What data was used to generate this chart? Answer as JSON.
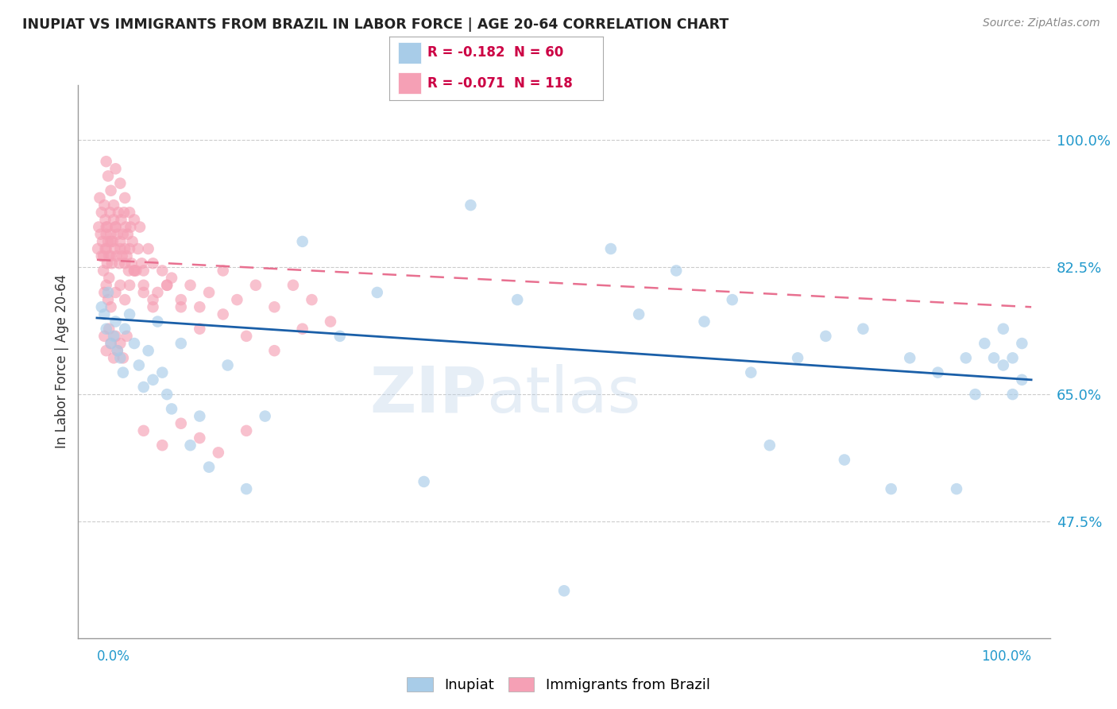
{
  "title": "INUPIAT VS IMMIGRANTS FROM BRAZIL IN LABOR FORCE | AGE 20-64 CORRELATION CHART",
  "source": "Source: ZipAtlas.com",
  "ylabel": "In Labor Force | Age 20-64",
  "yticks": [
    0.475,
    0.65,
    0.825,
    1.0
  ],
  "ytick_labels": [
    "47.5%",
    "65.0%",
    "82.5%",
    "100.0%"
  ],
  "xlim": [
    -0.02,
    1.02
  ],
  "ylim": [
    0.315,
    1.075
  ],
  "legend_r1": "R = -0.182  N = 60",
  "legend_r2": "R = -0.071  N = 118",
  "watermark_zip": "ZIP",
  "watermark_atlas": "atlas",
  "inupiat_color": "#a8cce8",
  "brazil_color": "#f5a0b5",
  "inupiat_line_color": "#1a5fa8",
  "brazil_line_color": "#e87090",
  "inupiat_legend_color": "#a8cce8",
  "brazil_legend_color": "#f5a0b5",
  "inupiat_x": [
    0.005,
    0.008,
    0.01,
    0.012,
    0.015,
    0.018,
    0.02,
    0.022,
    0.025,
    0.028,
    0.03,
    0.035,
    0.04,
    0.045,
    0.05,
    0.055,
    0.06,
    0.065,
    0.07,
    0.075,
    0.08,
    0.09,
    0.1,
    0.11,
    0.12,
    0.14,
    0.16,
    0.18,
    0.22,
    0.26,
    0.3,
    0.35,
    0.4,
    0.45,
    0.5,
    0.55,
    0.58,
    0.62,
    0.65,
    0.68,
    0.7,
    0.72,
    0.75,
    0.78,
    0.8,
    0.82,
    0.85,
    0.87,
    0.9,
    0.92,
    0.93,
    0.94,
    0.95,
    0.96,
    0.97,
    0.97,
    0.98,
    0.98,
    0.99,
    0.99
  ],
  "inupiat_y": [
    0.77,
    0.76,
    0.74,
    0.79,
    0.72,
    0.73,
    0.75,
    0.71,
    0.7,
    0.68,
    0.74,
    0.76,
    0.72,
    0.69,
    0.66,
    0.71,
    0.67,
    0.75,
    0.68,
    0.65,
    0.63,
    0.72,
    0.58,
    0.62,
    0.55,
    0.69,
    0.52,
    0.62,
    0.86,
    0.73,
    0.79,
    0.53,
    0.91,
    0.78,
    0.38,
    0.85,
    0.76,
    0.82,
    0.75,
    0.78,
    0.68,
    0.58,
    0.7,
    0.73,
    0.56,
    0.74,
    0.52,
    0.7,
    0.68,
    0.52,
    0.7,
    0.65,
    0.72,
    0.7,
    0.69,
    0.74,
    0.65,
    0.7,
    0.67,
    0.72
  ],
  "brazil_x": [
    0.001,
    0.002,
    0.003,
    0.004,
    0.005,
    0.006,
    0.007,
    0.008,
    0.009,
    0.01,
    0.01,
    0.011,
    0.012,
    0.013,
    0.014,
    0.015,
    0.016,
    0.017,
    0.018,
    0.019,
    0.02,
    0.021,
    0.022,
    0.023,
    0.024,
    0.025,
    0.026,
    0.027,
    0.028,
    0.029,
    0.03,
    0.031,
    0.032,
    0.033,
    0.034,
    0.035,
    0.036,
    0.037,
    0.038,
    0.04,
    0.042,
    0.044,
    0.046,
    0.048,
    0.05,
    0.055,
    0.06,
    0.065,
    0.07,
    0.075,
    0.08,
    0.09,
    0.1,
    0.11,
    0.12,
    0.135,
    0.15,
    0.17,
    0.19,
    0.21,
    0.23,
    0.25,
    0.01,
    0.012,
    0.015,
    0.018,
    0.02,
    0.025,
    0.03,
    0.035,
    0.008,
    0.01,
    0.012,
    0.015,
    0.02,
    0.025,
    0.03,
    0.04,
    0.05,
    0.06,
    0.008,
    0.01,
    0.013,
    0.015,
    0.018,
    0.02,
    0.022,
    0.025,
    0.028,
    0.032,
    0.005,
    0.007,
    0.009,
    0.011,
    0.013,
    0.015,
    0.05,
    0.07,
    0.09,
    0.11,
    0.13,
    0.16,
    0.01,
    0.015,
    0.02,
    0.025,
    0.03,
    0.035,
    0.04,
    0.05,
    0.06,
    0.075,
    0.09,
    0.11,
    0.135,
    0.16,
    0.19,
    0.22
  ],
  "brazil_y": [
    0.85,
    0.88,
    0.92,
    0.87,
    0.9,
    0.86,
    0.84,
    0.91,
    0.89,
    0.87,
    0.85,
    0.88,
    0.86,
    0.84,
    0.9,
    0.87,
    0.83,
    0.86,
    0.89,
    0.85,
    0.88,
    0.84,
    0.87,
    0.9,
    0.83,
    0.86,
    0.89,
    0.84,
    0.87,
    0.9,
    0.85,
    0.88,
    0.84,
    0.87,
    0.82,
    0.85,
    0.88,
    0.83,
    0.86,
    0.89,
    0.82,
    0.85,
    0.88,
    0.83,
    0.82,
    0.85,
    0.83,
    0.79,
    0.82,
    0.8,
    0.81,
    0.78,
    0.8,
    0.77,
    0.79,
    0.82,
    0.78,
    0.8,
    0.77,
    0.8,
    0.78,
    0.75,
    0.97,
    0.95,
    0.93,
    0.91,
    0.96,
    0.94,
    0.92,
    0.9,
    0.79,
    0.8,
    0.78,
    0.77,
    0.79,
    0.8,
    0.78,
    0.82,
    0.8,
    0.78,
    0.73,
    0.71,
    0.74,
    0.72,
    0.7,
    0.73,
    0.71,
    0.72,
    0.7,
    0.73,
    0.84,
    0.82,
    0.85,
    0.83,
    0.81,
    0.84,
    0.6,
    0.58,
    0.61,
    0.59,
    0.57,
    0.6,
    0.88,
    0.86,
    0.88,
    0.85,
    0.83,
    0.8,
    0.82,
    0.79,
    0.77,
    0.8,
    0.77,
    0.74,
    0.76,
    0.73,
    0.71,
    0.74
  ]
}
